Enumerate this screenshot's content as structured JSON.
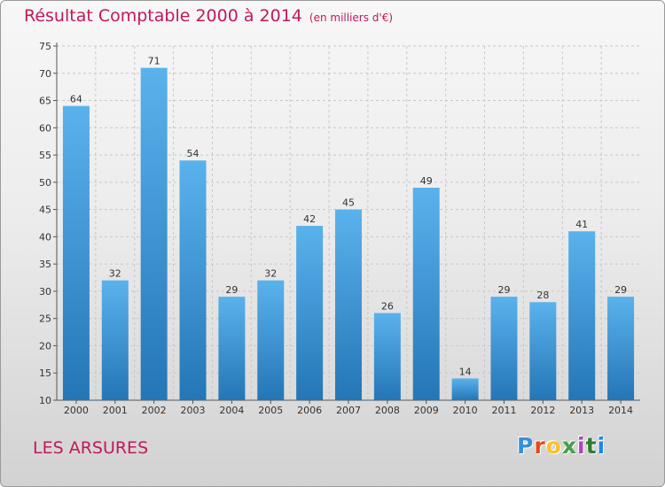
{
  "title": "Résultat Comptable 2000 à 2014",
  "subtitle": "(en milliers d'€)",
  "commune": "LES ARSURES",
  "logo": {
    "text": "Proxiti",
    "letter_colors": [
      "#3a8fd6",
      "#e64a19",
      "#fbc02d",
      "#43a047",
      "#ab47bc",
      "#2e7d32",
      "#1e88e5"
    ]
  },
  "colors": {
    "title": "#c2185b",
    "bar_top": "#5ab2ec",
    "bar_bottom": "#2476b6",
    "grid": "#c8c8c8"
  },
  "chart_data": {
    "type": "bar",
    "categories": [
      "2000",
      "2001",
      "2002",
      "2003",
      "2004",
      "2005",
      "2006",
      "2007",
      "2008",
      "2009",
      "2010",
      "2011",
      "2012",
      "2013",
      "2014"
    ],
    "values": [
      64,
      32,
      71,
      54,
      29,
      32,
      42,
      45,
      26,
      49,
      14,
      29,
      28,
      41,
      29
    ],
    "ylim": [
      10,
      75
    ],
    "yticks": [
      10,
      15,
      20,
      25,
      30,
      35,
      40,
      45,
      50,
      55,
      60,
      65,
      70,
      75
    ],
    "grid": true,
    "data_labels": true
  }
}
